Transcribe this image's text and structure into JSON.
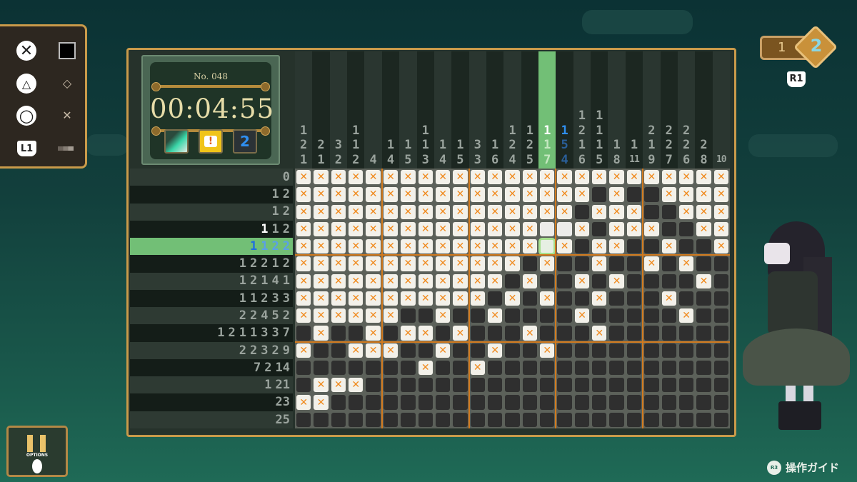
{
  "puzzle": {
    "number": "No. 048",
    "timer": "00:04:55"
  },
  "tools": [
    {
      "icon": "fill-mode-icon"
    },
    {
      "icon": "hint-icon"
    },
    {
      "icon": "layer-2-icon",
      "label": "2"
    }
  ],
  "controls": [
    {
      "button": "cross-button-icon",
      "action": "fill-square-icon"
    },
    {
      "button": "triangle-button-icon",
      "action": "mark-diamond-icon"
    },
    {
      "button": "circle-button-icon",
      "action": "mark-cross-icon"
    },
    {
      "button": "L1",
      "action": "dots-icon"
    }
  ],
  "pager": {
    "previous": "1",
    "current": "2",
    "button": "R1"
  },
  "pause": {
    "label": "OPTIONS"
  },
  "guide": {
    "button": "R3",
    "label": "操作ガイド"
  },
  "colors": {
    "accent": "#f08a1e",
    "highlight": "#72bf76",
    "frame": "#c99a4a",
    "active_clue": "#2f7fe0"
  },
  "grid": {
    "active_col": 15,
    "active_row": 5,
    "col_clues": [
      [
        1,
        2,
        1
      ],
      [
        2,
        1
      ],
      [
        3,
        2
      ],
      [
        1,
        1,
        2
      ],
      [
        4
      ],
      [
        1,
        4
      ],
      [
        1,
        5
      ],
      [
        1,
        1,
        3
      ],
      [
        1,
        4
      ],
      [
        1,
        5
      ],
      [
        3,
        3
      ],
      [
        1,
        6
      ],
      [
        1,
        2,
        4
      ],
      [
        1,
        2,
        5
      ],
      [
        1,
        1,
        7
      ],
      [
        1,
        5,
        4
      ],
      [
        1,
        2,
        1,
        6
      ],
      [
        1,
        1,
        1,
        5
      ],
      [
        1,
        8
      ],
      [
        1,
        11
      ],
      [
        2,
        1,
        9
      ],
      [
        2,
        2,
        7
      ],
      [
        2,
        2,
        6
      ],
      [
        2,
        8
      ],
      [
        10
      ]
    ],
    "row_clues": [
      [
        0
      ],
      [
        1,
        2
      ],
      [
        1,
        2
      ],
      [
        1,
        1,
        2
      ],
      [
        1,
        1,
        2,
        2
      ],
      [
        1,
        2,
        2,
        1,
        2
      ],
      [
        1,
        2,
        1,
        4,
        1
      ],
      [
        1,
        1,
        2,
        3,
        3
      ],
      [
        2,
        2,
        4,
        5,
        2
      ],
      [
        1,
        2,
        1,
        1,
        3,
        3,
        7
      ],
      [
        2,
        2,
        3,
        2,
        9
      ],
      [
        7,
        2,
        14
      ],
      [
        1,
        21
      ],
      [
        23
      ],
      [
        25
      ]
    ],
    "cells": [
      "xxxxxxxxxxxxxxxxxxxxxxxxx",
      "xxxxxxxxxxxxxxxxxfxffxxxx",
      "xxxxxxxxxxxxxxxxfxxxffxxx",
      "xxxxxxxxxxxxxx..xfxxxffxx",
      "xxxxxxxxxxxxxxcxfxxffxffx",
      "xxxxxxxxxxxxxfxffxffxfxff",
      "xxxxxxxxxxxxfxffxfxffffxf",
      "xxxxxxxxxxxfxfxffxfffxfff",
      "xxxxxxffxffxffffxfffffxff",
      "fxffxfxxfxfffxfffxfffffff",
      "xffxxxffxffxffxffffffffff",
      "fffffffxffxffffffffffffff",
      "fxxxfffffffffffffffffffff",
      "xxfffffffffffffffffffffff",
      "fffffffffffffffffffffffff"
    ]
  }
}
